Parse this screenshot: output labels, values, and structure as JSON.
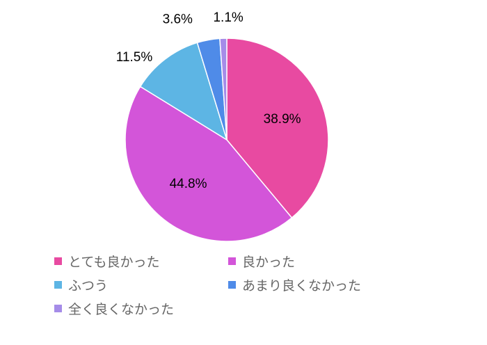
{
  "chart_data": {
    "type": "pie",
    "start_angle_deg": 0,
    "direction": "clockwise",
    "slices": [
      {
        "name": "とても良かった",
        "value": 38.9,
        "label": "38.9%",
        "color": "#e84aa1"
      },
      {
        "name": "良かった",
        "value": 44.8,
        "label": "44.8%",
        "color": "#d355d9"
      },
      {
        "name": "ふつう",
        "value": 11.5,
        "label": "11.5%",
        "color": "#5db5e4"
      },
      {
        "name": "あまり良くなかった",
        "value": 3.6,
        "label": "3.6%",
        "color": "#4f8be8"
      },
      {
        "name": "全く良くなかった",
        "value": 1.1,
        "label": "1.1%",
        "color": "#a58ce8"
      }
    ],
    "legend": {
      "placement": "bottom",
      "columns": 2
    }
  }
}
